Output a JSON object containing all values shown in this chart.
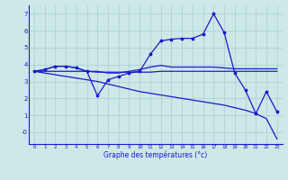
{
  "x": [
    0,
    1,
    2,
    3,
    4,
    5,
    6,
    7,
    8,
    9,
    10,
    11,
    12,
    13,
    14,
    15,
    16,
    17,
    18,
    19,
    20,
    21,
    22,
    23
  ],
  "line1": [
    3.6,
    3.7,
    3.9,
    3.9,
    3.8,
    3.6,
    3.6,
    3.5,
    3.5,
    3.6,
    3.7,
    3.85,
    3.95,
    3.85,
    3.85,
    3.85,
    3.85,
    3.85,
    3.8,
    3.75,
    3.75,
    3.75,
    3.75,
    3.75
  ],
  "line2_markers": [
    3.6,
    3.7,
    3.9,
    3.9,
    3.8,
    3.6,
    2.15,
    3.1,
    3.3,
    3.5,
    3.6,
    4.6,
    5.4,
    5.5,
    5.55,
    5.55,
    5.8,
    7.0,
    5.9,
    3.5,
    2.5,
    1.1,
    2.4,
    1.2
  ],
  "line3": [
    3.6,
    3.6,
    3.6,
    3.6,
    3.6,
    3.6,
    3.55,
    3.55,
    3.55,
    3.55,
    3.55,
    3.55,
    3.6,
    3.6,
    3.6,
    3.6,
    3.6,
    3.6,
    3.6,
    3.6,
    3.6,
    3.6,
    3.6,
    3.6
  ],
  "line4": [
    3.6,
    3.5,
    3.4,
    3.3,
    3.2,
    3.1,
    3.0,
    2.85,
    2.7,
    2.55,
    2.4,
    2.3,
    2.2,
    2.1,
    2.0,
    1.9,
    1.8,
    1.7,
    1.6,
    1.45,
    1.3,
    1.1,
    0.8,
    -0.4
  ],
  "xlabel": "Graphe des températures (°c)",
  "color": "#1a1acc",
  "bg_color": "#cce8e8",
  "grid_color": "#aacccc",
  "ylim": [
    -0.7,
    7.5
  ],
  "xlim": [
    -0.5,
    23.5
  ]
}
